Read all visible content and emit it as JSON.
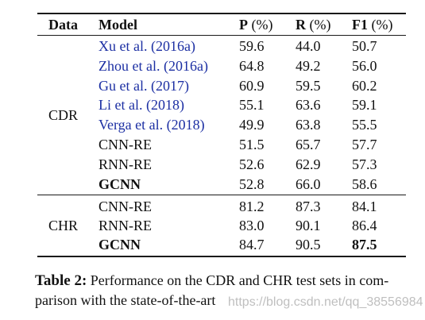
{
  "headers": {
    "data": "Data",
    "model": "Model",
    "p": "P",
    "r": "R",
    "f1": "F1",
    "unit": "(%)"
  },
  "groups": [
    {
      "label": "CDR",
      "rows": [
        {
          "model": "Xu et al. (2016a)",
          "p": "59.6",
          "r": "44.0",
          "f1": "50.7",
          "cite": true,
          "bold": false
        },
        {
          "model": "Zhou et al. (2016a)",
          "p": "64.8",
          "r": "49.2",
          "f1": "56.0",
          "cite": true,
          "bold": false
        },
        {
          "model": "Gu et al. (2017)",
          "p": "60.9",
          "r": "59.5",
          "f1": "60.2",
          "cite": true,
          "bold": false
        },
        {
          "model": "Li et al. (2018)",
          "p": "55.1",
          "r": "63.6",
          "f1": "59.1",
          "cite": true,
          "bold": false
        },
        {
          "model": "Verga et al. (2018)",
          "p": "49.9",
          "r": "63.8",
          "f1": "55.5",
          "cite": true,
          "bold": false
        },
        {
          "model": "CNN-RE",
          "p": "51.5",
          "r": "65.7",
          "f1": "57.7",
          "cite": false,
          "bold": false
        },
        {
          "model": "RNN-RE",
          "p": "52.6",
          "r": "62.9",
          "f1": "57.3",
          "cite": false,
          "bold": false
        },
        {
          "model": "GCNN",
          "p": "52.8",
          "r": "66.0",
          "f1": "58.6",
          "cite": false,
          "bold": true
        }
      ]
    },
    {
      "label": "CHR",
      "rows": [
        {
          "model": "CNN-RE",
          "p": "81.2",
          "r": "87.3",
          "f1": "84.1",
          "cite": false,
          "bold": false
        },
        {
          "model": "RNN-RE",
          "p": "83.0",
          "r": "90.1",
          "f1": "86.4",
          "cite": false,
          "bold": false
        },
        {
          "model": "GCNN",
          "p": "84.7",
          "r": "90.5",
          "f1": "87.5",
          "cite": false,
          "bold": true,
          "f1_bold": true
        }
      ]
    }
  ],
  "caption": {
    "label": "Table 2:",
    "line1": "Performance on the CDR and CHR test sets in com-",
    "line2": "parison with the state-of-the-art"
  },
  "watermark": "https://blog.csdn.net/qq_38556984"
}
